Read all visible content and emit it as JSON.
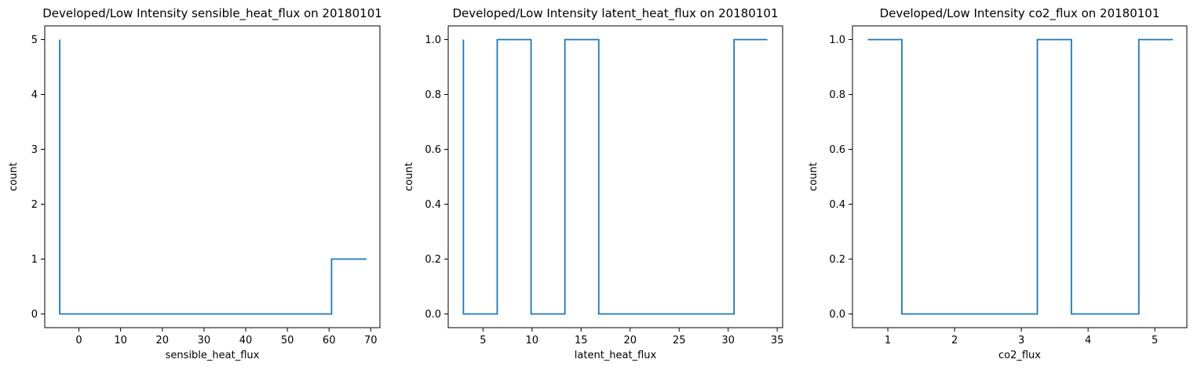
{
  "chart_data": [
    {
      "type": "line",
      "drawstyle": "steps-post",
      "title": "Developed/Low Intensity sensible_heat_flux on 20180101",
      "xlabel": "sensible_heat_flux",
      "ylabel": "count",
      "xlim": [
        -8.2,
        72.2
      ],
      "ylim": [
        -0.25,
        5.25
      ],
      "xticks": [
        0,
        10,
        20,
        30,
        40,
        50,
        60,
        70
      ],
      "xtick_labels": [
        "0",
        "10",
        "20",
        "30",
        "40",
        "50",
        "60",
        "70"
      ],
      "yticks": [
        0,
        1,
        2,
        3,
        4,
        5
      ],
      "ytick_labels": [
        "0",
        "1",
        "2",
        "3",
        "4",
        "5"
      ],
      "grid": false,
      "color": "#1f77b4",
      "x": [
        -4.6,
        -4.6,
        60.6,
        60.6,
        69.0
      ],
      "y": [
        5,
        0,
        0,
        1,
        1
      ]
    },
    {
      "type": "line",
      "drawstyle": "steps-post",
      "title": "Developed/Low Intensity latent_heat_flux on 20180101",
      "xlabel": "latent_heat_flux",
      "ylabel": "count",
      "xlim": [
        1.45,
        35.55
      ],
      "ylim": [
        -0.05,
        1.05
      ],
      "xticks": [
        5,
        10,
        15,
        20,
        25,
        30,
        35
      ],
      "xtick_labels": [
        "5",
        "10",
        "15",
        "20",
        "25",
        "30",
        "35"
      ],
      "yticks": [
        0.0,
        0.2,
        0.4,
        0.6,
        0.8,
        1.0
      ],
      "ytick_labels": [
        "0.0",
        "0.2",
        "0.4",
        "0.6",
        "0.8",
        "1.0"
      ],
      "grid": false,
      "color": "#1f77b4",
      "x": [
        3.0,
        3.0,
        6.45,
        6.45,
        9.9,
        9.9,
        13.35,
        13.35,
        16.8,
        16.8,
        30.6,
        30.6,
        34.0
      ],
      "y": [
        1,
        0,
        0,
        1,
        1,
        0,
        0,
        1,
        1,
        0,
        0,
        1,
        1
      ]
    },
    {
      "type": "line",
      "drawstyle": "steps-post",
      "title": "Developed/Low Intensity co2_flux on 20180101",
      "xlabel": "co2_flux",
      "ylabel": "count",
      "xlim": [
        0.47,
        5.48
      ],
      "ylim": [
        -0.05,
        1.05
      ],
      "xticks": [
        1,
        2,
        3,
        4,
        5
      ],
      "xtick_labels": [
        "1",
        "2",
        "3",
        "4",
        "5"
      ],
      "yticks": [
        0.0,
        0.2,
        0.4,
        0.6,
        0.8,
        1.0
      ],
      "ytick_labels": [
        "0.0",
        "0.2",
        "0.4",
        "0.6",
        "0.8",
        "1.0"
      ],
      "grid": false,
      "color": "#1f77b4",
      "x": [
        0.7,
        1.21,
        1.21,
        3.24,
        3.24,
        3.75,
        3.75,
        4.76,
        4.76,
        5.27
      ],
      "y": [
        1,
        1,
        0,
        0,
        1,
        1,
        0,
        0,
        1,
        1
      ]
    }
  ]
}
